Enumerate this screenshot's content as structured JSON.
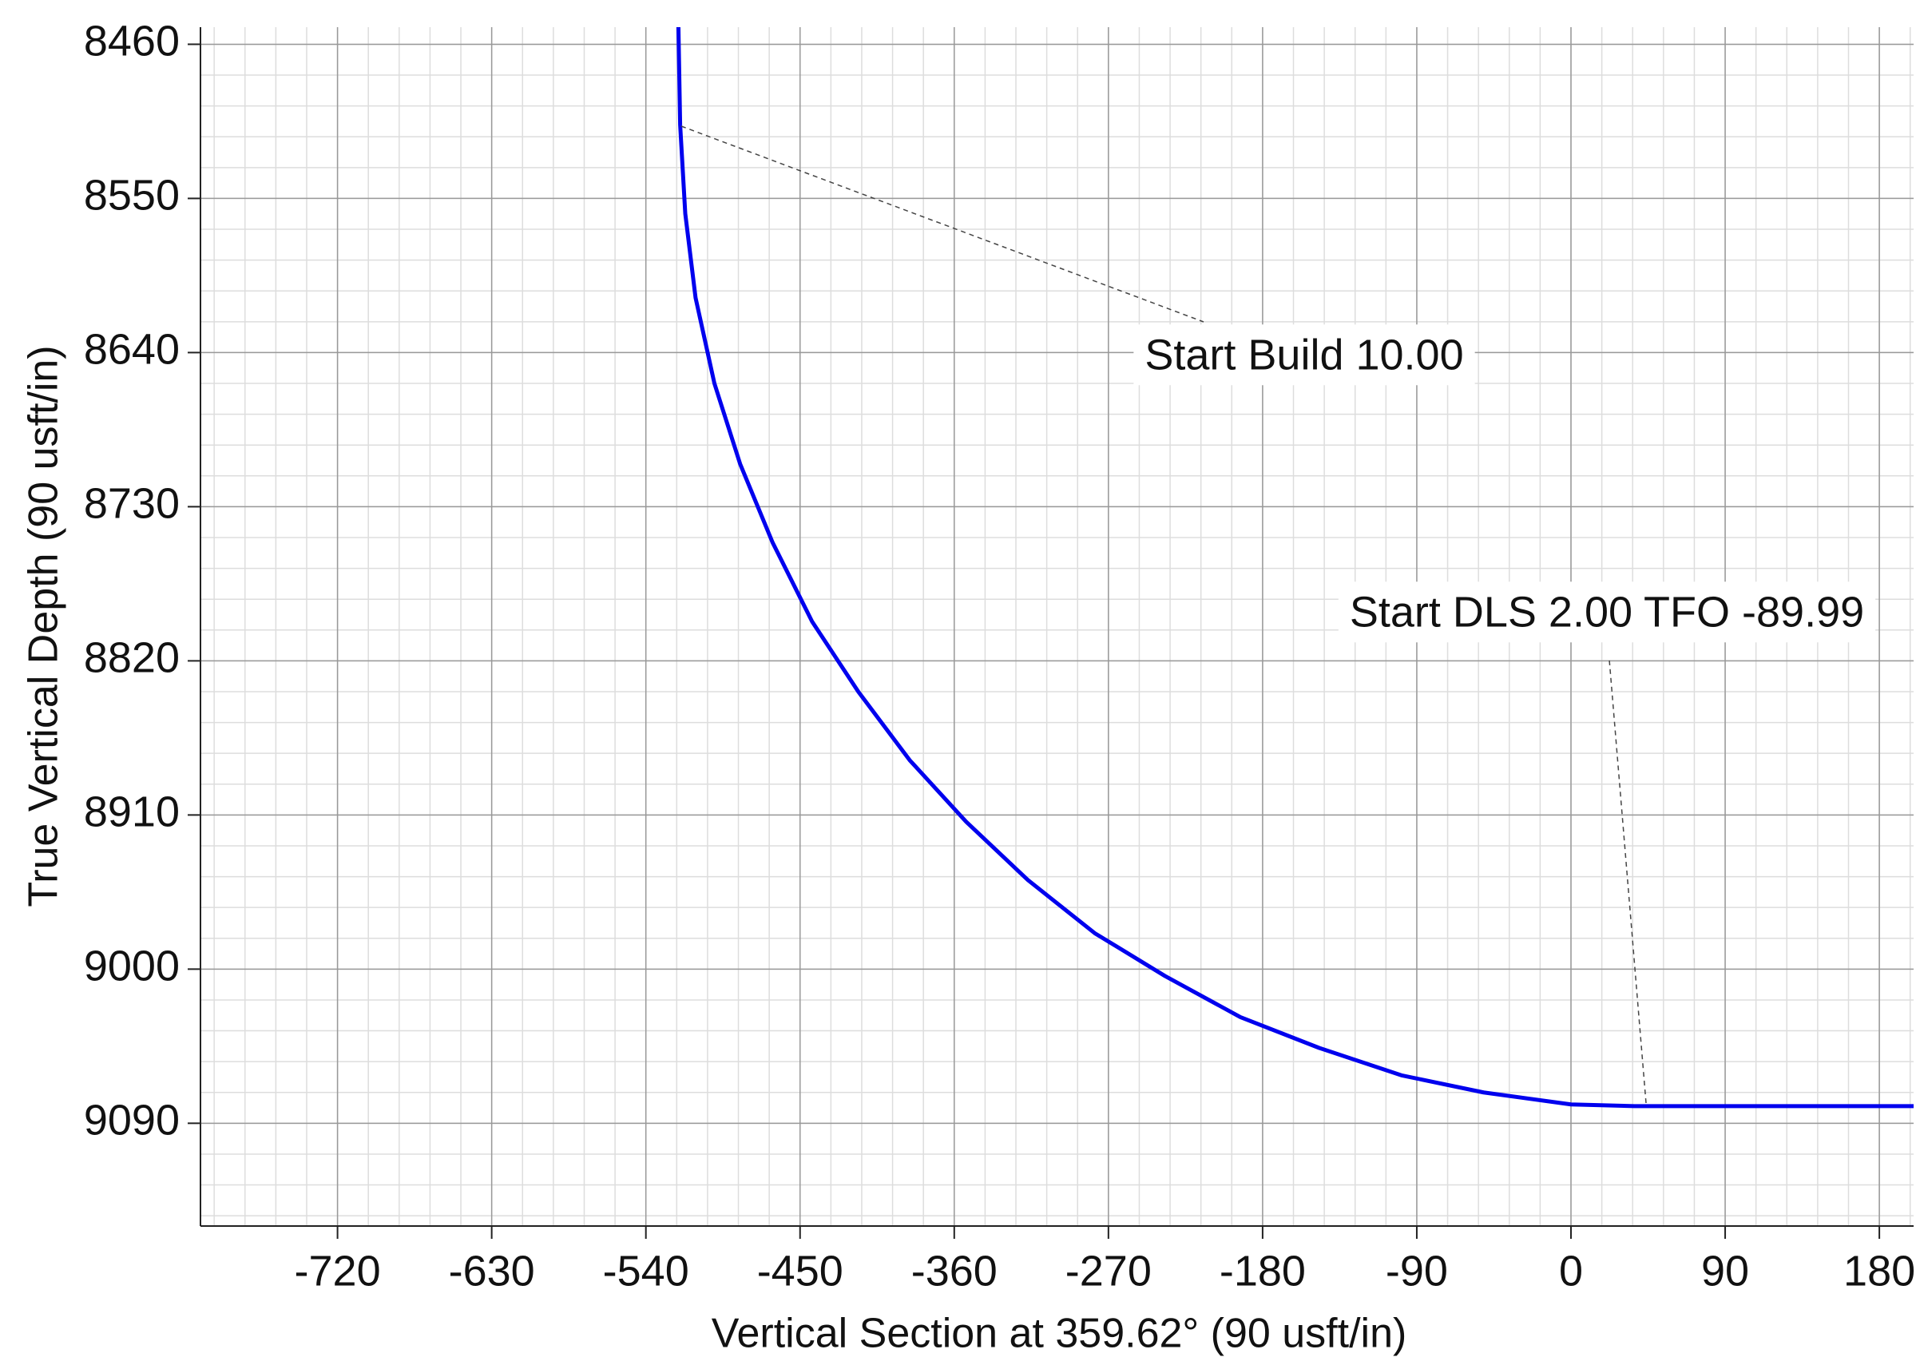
{
  "chart_data": {
    "type": "line",
    "x_label": "Vertical Section at 359.62° (90 usft/in)",
    "y_label": "True Vertical Depth (90 usft/in)",
    "xlim": [
      -800,
      200
    ],
    "xticks": [
      -720,
      -630,
      -540,
      -450,
      -360,
      -270,
      -180,
      -90,
      0,
      90,
      180
    ],
    "ylim": [
      8450,
      9150
    ],
    "y_inverted": true,
    "yticks": [
      8460,
      8550,
      8640,
      8730,
      8820,
      8910,
      9000,
      9090
    ],
    "grid": true,
    "series": [
      {
        "color": "#0000ee",
        "x": [
          -521,
          -520,
          -517,
          -511,
          -500,
          -485,
          -466,
          -443,
          -416,
          -386,
          -353,
          -317,
          -278,
          -237,
          -193,
          -147,
          -99,
          -51,
          0,
          37,
          200
        ],
        "values": [
          8450,
          8507,
          8559,
          8608,
          8658,
          8705,
          8751,
          8797,
          8838,
          8878,
          8914,
          8948,
          8979,
          9004,
          9028,
          9046,
          9062,
          9072,
          9079,
          9080,
          9080
        ]
      }
    ],
    "annotations": [
      "Start Build 10.00",
      "Start DLS 2.00 TFO -89.99"
    ]
  }
}
